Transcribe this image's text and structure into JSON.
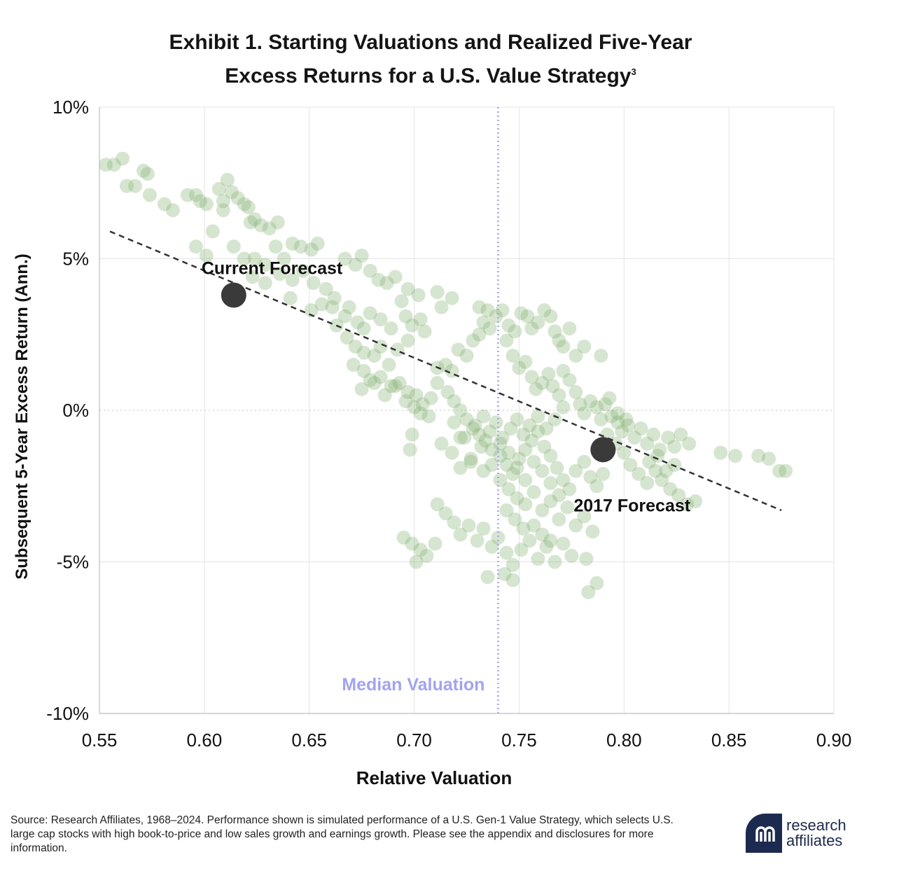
{
  "title": {
    "line1": "Exhibit 1. Starting Valuations and Realized Five-Year",
    "line2": "Excess Returns for a U.S. Value Strategy",
    "footnote_marker": "3"
  },
  "source_note": "Source: Research Affiliates, 1968–2024. Performance shown is simulated performance of a U.S. Gen-1 Value Strategy, which selects U.S. large cap stocks with high book-to-price and low sales growth and earnings growth. Please see the appendix and disclosures for more information.",
  "logo": {
    "line1": "research",
    "line2": "affiliates",
    "mark": "ᴙᴙ",
    "trademark": "®"
  },
  "colors": {
    "points": "#7fae6e",
    "forecast": "#3a3a3a",
    "median": "#a3a3ef",
    "trend": "#333333",
    "grid": "#e4e4e4"
  },
  "chart_data": {
    "type": "scatter",
    "xlabel": "Relative Valuation",
    "ylabel": "Subsequent 5-Year Excess Return (Ann.)",
    "xlim": [
      0.55,
      0.9
    ],
    "ylim": [
      -10,
      10
    ],
    "x_ticks": [
      "0.55",
      "0.60",
      "0.65",
      "0.70",
      "0.75",
      "0.80",
      "0.85",
      "0.90"
    ],
    "y_ticks": [
      {
        "v": 10,
        "label": "10%"
      },
      {
        "v": 5,
        "label": "5%"
      },
      {
        "v": 0,
        "label": "0%"
      },
      {
        "v": -5,
        "label": "-5%"
      },
      {
        "v": -10,
        "label": "-10%"
      }
    ],
    "grid": true,
    "median_valuation": {
      "x": 0.74,
      "label": "Median Valuation"
    },
    "trendline": {
      "x": [
        0.555,
        0.875
      ],
      "y": [
        5.9,
        -3.3
      ]
    },
    "highlights": [
      {
        "label": "Current Forecast",
        "x": 0.614,
        "y": 3.8
      },
      {
        "label": "2017 Forecast",
        "x": 0.79,
        "y": -1.3
      }
    ],
    "points": [
      [
        0.553,
        8.1
      ],
      [
        0.557,
        8.1
      ],
      [
        0.561,
        8.3
      ],
      [
        0.563,
        7.4
      ],
      [
        0.567,
        7.4
      ],
      [
        0.571,
        7.9
      ],
      [
        0.573,
        7.8
      ],
      [
        0.574,
        7.1
      ],
      [
        0.581,
        6.8
      ],
      [
        0.585,
        6.6
      ],
      [
        0.592,
        7.1
      ],
      [
        0.596,
        7.1
      ],
      [
        0.598,
        6.9
      ],
      [
        0.601,
        6.8
      ],
      [
        0.604,
        5.9
      ],
      [
        0.596,
        5.4
      ],
      [
        0.601,
        5.1
      ],
      [
        0.607,
        7.3
      ],
      [
        0.609,
        6.9
      ],
      [
        0.611,
        7.6
      ],
      [
        0.609,
        6.6
      ],
      [
        0.613,
        7.2
      ],
      [
        0.616,
        7.0
      ],
      [
        0.619,
        6.8
      ],
      [
        0.621,
        6.7
      ],
      [
        0.622,
        6.2
      ],
      [
        0.624,
        6.3
      ],
      [
        0.627,
        6.1
      ],
      [
        0.631,
        6.0
      ],
      [
        0.635,
        6.2
      ],
      [
        0.614,
        5.4
      ],
      [
        0.619,
        5.0
      ],
      [
        0.624,
        5.0
      ],
      [
        0.629,
        4.8
      ],
      [
        0.634,
        5.4
      ],
      [
        0.638,
        5.0
      ],
      [
        0.642,
        5.5
      ],
      [
        0.646,
        5.4
      ],
      [
        0.651,
        5.3
      ],
      [
        0.654,
        5.5
      ],
      [
        0.623,
        4.4
      ],
      [
        0.629,
        4.2
      ],
      [
        0.636,
        4.5
      ],
      [
        0.642,
        4.3
      ],
      [
        0.647,
        4.6
      ],
      [
        0.652,
        4.2
      ],
      [
        0.658,
        4.0
      ],
      [
        0.662,
        3.7
      ],
      [
        0.667,
        5.0
      ],
      [
        0.672,
        4.8
      ],
      [
        0.675,
        5.1
      ],
      [
        0.679,
        4.6
      ],
      [
        0.683,
        4.3
      ],
      [
        0.687,
        4.2
      ],
      [
        0.691,
        4.4
      ],
      [
        0.697,
        4.0
      ],
      [
        0.702,
        3.8
      ],
      [
        0.641,
        3.7
      ],
      [
        0.651,
        3.3
      ],
      [
        0.656,
        3.5
      ],
      [
        0.661,
        3.4
      ],
      [
        0.663,
        2.8
      ],
      [
        0.667,
        3.1
      ],
      [
        0.669,
        3.4
      ],
      [
        0.673,
        2.9
      ],
      [
        0.676,
        2.7
      ],
      [
        0.679,
        3.2
      ],
      [
        0.684,
        3.0
      ],
      [
        0.689,
        2.7
      ],
      [
        0.694,
        3.6
      ],
      [
        0.696,
        3.1
      ],
      [
        0.699,
        2.8
      ],
      [
        0.703,
        3.0
      ],
      [
        0.705,
        2.6
      ],
      [
        0.711,
        3.9
      ],
      [
        0.713,
        3.4
      ],
      [
        0.718,
        3.7
      ],
      [
        0.668,
        2.4
      ],
      [
        0.672,
        2.1
      ],
      [
        0.676,
        1.9
      ],
      [
        0.681,
        1.8
      ],
      [
        0.684,
        2.1
      ],
      [
        0.688,
        1.5
      ],
      [
        0.692,
        2.0
      ],
      [
        0.697,
        2.3
      ],
      [
        0.671,
        1.5
      ],
      [
        0.676,
        1.3
      ],
      [
        0.679,
        1.0
      ],
      [
        0.684,
        1.1
      ],
      [
        0.689,
        0.8
      ],
      [
        0.693,
        0.9
      ],
      [
        0.697,
        0.6
      ],
      [
        0.701,
        0.5
      ],
      [
        0.704,
        0.2
      ],
      [
        0.708,
        0.4
      ],
      [
        0.675,
        0.7
      ],
      [
        0.681,
        0.9
      ],
      [
        0.686,
        0.5
      ],
      [
        0.691,
        0.8
      ],
      [
        0.696,
        0.3
      ],
      [
        0.7,
        0.1
      ],
      [
        0.703,
        -0.1
      ],
      [
        0.707,
        -0.2
      ],
      [
        0.711,
        1.4
      ],
      [
        0.715,
        1.5
      ],
      [
        0.718,
        1.3
      ],
      [
        0.721,
        2.0
      ],
      [
        0.725,
        1.8
      ],
      [
        0.728,
        2.3
      ],
      [
        0.731,
        2.5
      ],
      [
        0.733,
        2.9
      ],
      [
        0.736,
        2.7
      ],
      [
        0.731,
        3.4
      ],
      [
        0.735,
        3.3
      ],
      [
        0.739,
        3.1
      ],
      [
        0.742,
        3.3
      ],
      [
        0.745,
        2.8
      ],
      [
        0.748,
        2.6
      ],
      [
        0.751,
        3.2
      ],
      [
        0.754,
        3.1
      ],
      [
        0.756,
        2.7
      ],
      [
        0.759,
        2.9
      ],
      [
        0.762,
        3.3
      ],
      [
        0.765,
        3.1
      ],
      [
        0.767,
        2.6
      ],
      [
        0.769,
        2.3
      ],
      [
        0.771,
        2.1
      ],
      [
        0.774,
        2.7
      ],
      [
        0.777,
        1.8
      ],
      [
        0.781,
        2.1
      ],
      [
        0.744,
        2.3
      ],
      [
        0.747,
        1.8
      ],
      [
        0.75,
        1.4
      ],
      [
        0.753,
        1.6
      ],
      [
        0.756,
        1.1
      ],
      [
        0.758,
        0.7
      ],
      [
        0.761,
        0.9
      ],
      [
        0.764,
        1.2
      ],
      [
        0.766,
        0.8
      ],
      [
        0.769,
        0.5
      ],
      [
        0.771,
        1.3
      ],
      [
        0.774,
        1.0
      ],
      [
        0.777,
        0.6
      ],
      [
        0.779,
        0.2
      ],
      [
        0.781,
        -0.1
      ],
      [
        0.784,
        0.3
      ],
      [
        0.787,
        0.1
      ],
      [
        0.789,
        -0.3
      ],
      [
        0.791,
        0.2
      ],
      [
        0.794,
        -0.2
      ],
      [
        0.797,
        -0.4
      ],
      [
        0.799,
        -0.7
      ],
      [
        0.802,
        -0.5
      ],
      [
        0.805,
        -0.9
      ],
      [
        0.808,
        -0.6
      ],
      [
        0.811,
        -1.1
      ],
      [
        0.814,
        -0.8
      ],
      [
        0.817,
        -1.3
      ],
      [
        0.821,
        -0.9
      ],
      [
        0.824,
        -1.2
      ],
      [
        0.827,
        -0.8
      ],
      [
        0.831,
        -1.1
      ],
      [
        0.846,
        -1.4
      ],
      [
        0.853,
        -1.5
      ],
      [
        0.864,
        -1.5
      ],
      [
        0.869,
        -1.6
      ],
      [
        0.874,
        -2.0
      ],
      [
        0.877,
        -2.0
      ],
      [
        0.711,
        0.9
      ],
      [
        0.716,
        0.6
      ],
      [
        0.719,
        0.3
      ],
      [
        0.722,
        0.0
      ],
      [
        0.725,
        -0.3
      ],
      [
        0.728,
        -0.6
      ],
      [
        0.731,
        -0.8
      ],
      [
        0.734,
        -1.0
      ],
      [
        0.737,
        -1.3
      ],
      [
        0.741,
        -1.5
      ],
      [
        0.744,
        -1.8
      ],
      [
        0.747,
        -2.1
      ],
      [
        0.75,
        -1.6
      ],
      [
        0.753,
        -1.3
      ],
      [
        0.756,
        -1.0
      ],
      [
        0.759,
        -0.7
      ],
      [
        0.762,
        -1.2
      ],
      [
        0.765,
        -1.5
      ],
      [
        0.768,
        -1.9
      ],
      [
        0.771,
        -2.3
      ],
      [
        0.774,
        -2.6
      ],
      [
        0.777,
        -2.0
      ],
      [
        0.781,
        -1.7
      ],
      [
        0.784,
        -2.2
      ],
      [
        0.787,
        -2.5
      ],
      [
        0.79,
        -2.1
      ],
      [
        0.713,
        -1.1
      ],
      [
        0.718,
        -1.4
      ],
      [
        0.722,
        -0.9
      ],
      [
        0.727,
        -1.6
      ],
      [
        0.732,
        -1.2
      ],
      [
        0.736,
        -0.7
      ],
      [
        0.739,
        -0.4
      ],
      [
        0.742,
        -0.9
      ],
      [
        0.746,
        -0.6
      ],
      [
        0.749,
        -0.3
      ],
      [
        0.752,
        -0.8
      ],
      [
        0.755,
        -0.5
      ],
      [
        0.759,
        -0.2
      ],
      [
        0.763,
        -0.6
      ],
      [
        0.767,
        -0.3
      ],
      [
        0.771,
        0.1
      ],
      [
        0.722,
        -1.9
      ],
      [
        0.727,
        -1.7
      ],
      [
        0.733,
        -2.0
      ],
      [
        0.737,
        -1.8
      ],
      [
        0.741,
        -2.3
      ],
      [
        0.745,
        -2.6
      ],
      [
        0.749,
        -2.9
      ],
      [
        0.753,
        -3.1
      ],
      [
        0.757,
        -2.7
      ],
      [
        0.761,
        -3.3
      ],
      [
        0.765,
        -3.0
      ],
      [
        0.769,
        -3.6
      ],
      [
        0.773,
        -3.2
      ],
      [
        0.777,
        -3.8
      ],
      [
        0.781,
        -3.5
      ],
      [
        0.785,
        -4.0
      ],
      [
        0.711,
        -3.1
      ],
      [
        0.715,
        -3.4
      ],
      [
        0.719,
        -3.7
      ],
      [
        0.722,
        -4.1
      ],
      [
        0.726,
        -3.8
      ],
      [
        0.73,
        -4.3
      ],
      [
        0.733,
        -3.9
      ],
      [
        0.737,
        -4.5
      ],
      [
        0.74,
        -4.2
      ],
      [
        0.744,
        -4.7
      ],
      [
        0.747,
        -5.1
      ],
      [
        0.751,
        -4.6
      ],
      [
        0.755,
        -4.3
      ],
      [
        0.759,
        -4.9
      ],
      [
        0.763,
        -4.5
      ],
      [
        0.767,
        -5.0
      ],
      [
        0.771,
        -4.4
      ],
      [
        0.775,
        -4.8
      ],
      [
        0.695,
        -4.2
      ],
      [
        0.699,
        -4.4
      ],
      [
        0.703,
        -4.6
      ],
      [
        0.706,
        -4.8
      ],
      [
        0.71,
        -4.4
      ],
      [
        0.701,
        -5.0
      ],
      [
        0.735,
        -5.5
      ],
      [
        0.743,
        -5.4
      ],
      [
        0.747,
        -5.6
      ],
      [
        0.782,
        -4.9
      ],
      [
        0.787,
        -5.7
      ],
      [
        0.783,
        -6.0
      ],
      [
        0.792,
        -0.8
      ],
      [
        0.796,
        -1.1
      ],
      [
        0.8,
        -1.4
      ],
      [
        0.803,
        -1.8
      ],
      [
        0.807,
        -2.1
      ],
      [
        0.811,
        -2.4
      ],
      [
        0.815,
        -2.0
      ],
      [
        0.818,
        -2.3
      ],
      [
        0.822,
        -2.6
      ],
      [
        0.826,
        -2.8
      ],
      [
        0.83,
        -3.1
      ],
      [
        0.834,
        -3.0
      ],
      [
        0.812,
        -1.7
      ],
      [
        0.816,
        -1.5
      ],
      [
        0.82,
        -2.0
      ],
      [
        0.824,
        -1.8
      ],
      [
        0.789,
        1.8
      ],
      [
        0.793,
        0.4
      ],
      [
        0.797,
        -0.1
      ],
      [
        0.801,
        -0.3
      ],
      [
        0.719,
        -0.4
      ],
      [
        0.724,
        -0.9
      ],
      [
        0.729,
        -0.5
      ],
      [
        0.733,
        -0.2
      ],
      [
        0.699,
        -0.8
      ],
      [
        0.698,
        -1.3
      ],
      [
        0.741,
        -1.1
      ],
      [
        0.745,
        -1.4
      ],
      [
        0.749,
        -1.9
      ],
      [
        0.753,
        -2.3
      ],
      [
        0.757,
        -1.7
      ],
      [
        0.761,
        -2.0
      ],
      [
        0.765,
        -2.4
      ],
      [
        0.769,
        -2.8
      ],
      [
        0.757,
        -3.8
      ],
      [
        0.761,
        -4.1
      ],
      [
        0.765,
        -4.3
      ],
      [
        0.744,
        -3.3
      ],
      [
        0.748,
        -3.6
      ],
      [
        0.752,
        -3.9
      ]
    ]
  }
}
